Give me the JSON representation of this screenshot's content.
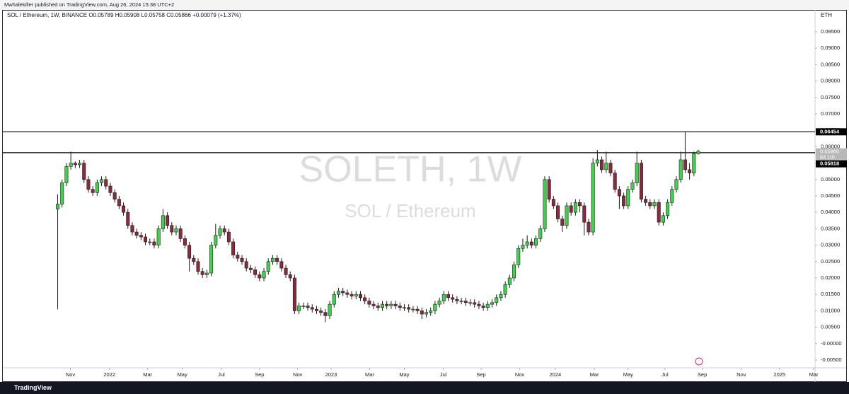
{
  "header": "Mwhalekiller published on TradingView.com, Aug 26, 2024 15:38 UTC+2",
  "footer": "TradingView",
  "chart_data": {
    "type": "candlestick",
    "symbol": "SOL / Ethereum, 1W, BINANCE",
    "legend_values": [
      "O0.05789",
      "H0.05908",
      "L0.05758",
      "C0.05866",
      "+0.00079 (+1.37%)"
    ],
    "watermark": "SOLETH, 1W",
    "watermark_subtitle": "SOL / Ethereum",
    "y_unit": "ETH",
    "countdown": "6d 11h",
    "colors": {
      "up": "#3fd24b",
      "down": "#8a2a3b",
      "wick": "#1c1c1c"
    },
    "hlines": [
      0.06454,
      0.05818
    ],
    "xlim": [
      -12.5,
      172.6
    ],
    "ylim": [
      -0.00737,
      0.10168
    ],
    "xticks": [
      {
        "value": 2.9,
        "label": "Nov"
      },
      {
        "value": 11.8,
        "label": "2022"
      },
      {
        "value": 20.5,
        "label": "Mar"
      },
      {
        "value": 28.4,
        "label": "May"
      },
      {
        "value": 37.3,
        "label": "Jul"
      },
      {
        "value": 46.0,
        "label": "Sep"
      },
      {
        "value": 54.7,
        "label": "Nov"
      },
      {
        "value": 62.3,
        "label": "2023"
      },
      {
        "value": 71.1,
        "label": "Mar"
      },
      {
        "value": 79.0,
        "label": "May"
      },
      {
        "value": 87.9,
        "label": "Jul"
      },
      {
        "value": 96.5,
        "label": "Sep"
      },
      {
        "value": 105.3,
        "label": "Nov"
      },
      {
        "value": 113.4,
        "label": "2024"
      },
      {
        "value": 122.3,
        "label": "Mar"
      },
      {
        "value": 130.0,
        "label": "May"
      },
      {
        "value": 138.4,
        "label": "Jul"
      },
      {
        "value": 146.9,
        "label": "Sep"
      },
      {
        "value": 155.8,
        "label": "Nov"
      },
      {
        "value": 164.5,
        "label": "2025"
      },
      {
        "value": 172.3,
        "label": "Mar"
      }
    ],
    "yticks": [
      {
        "value": 0.095,
        "label": "0.09500"
      },
      {
        "value": 0.09,
        "label": "0.09000"
      },
      {
        "value": 0.085,
        "label": "0.08500"
      },
      {
        "value": 0.08,
        "label": "0.08000"
      },
      {
        "value": 0.075,
        "label": "0.07500"
      },
      {
        "value": 0.07,
        "label": "0.07000"
      },
      {
        "value": 0.065,
        "label": "0.06500"
      },
      {
        "value": 0.06,
        "label": "0.06000"
      },
      {
        "value": 0.055,
        "label": "0.05500"
      },
      {
        "value": 0.05,
        "label": "0.05000"
      },
      {
        "value": 0.045,
        "label": "0.04500"
      },
      {
        "value": 0.04,
        "label": "0.04000"
      },
      {
        "value": 0.035,
        "label": "0.03500"
      },
      {
        "value": 0.03,
        "label": "0.03000"
      },
      {
        "value": 0.025,
        "label": "0.02500"
      },
      {
        "value": 0.02,
        "label": "0.02000"
      },
      {
        "value": 0.015,
        "label": "0.01500"
      },
      {
        "value": 0.01,
        "label": "0.01000"
      },
      {
        "value": 0.005,
        "label": "0.00500"
      },
      {
        "value": 0,
        "label": "-0.00000"
      },
      {
        "value": -0.005,
        "label": "-0.00500"
      }
    ],
    "x": [
      0,
      1,
      2,
      3,
      4,
      5,
      6,
      7,
      8,
      9,
      10,
      11,
      12,
      13,
      14,
      15,
      16,
      17,
      18,
      19,
      20,
      21,
      22,
      23,
      24,
      25,
      26,
      27,
      28,
      29,
      30,
      31,
      32,
      33,
      34,
      35,
      36,
      37,
      38,
      39,
      40,
      41,
      42,
      43,
      44,
      45,
      46,
      47,
      48,
      49,
      50,
      51,
      52,
      53,
      54,
      55,
      56,
      57,
      58,
      59,
      60,
      61,
      62,
      63,
      64,
      65,
      66,
      67,
      68,
      69,
      70,
      71,
      72,
      73,
      74,
      75,
      76,
      77,
      78,
      79,
      80,
      81,
      82,
      83,
      84,
      85,
      86,
      87,
      88,
      89,
      90,
      91,
      92,
      93,
      94,
      95,
      96,
      97,
      98,
      99,
      100,
      101,
      102,
      103,
      104,
      105,
      106,
      107,
      108,
      109,
      110,
      111,
      112,
      113,
      114,
      115,
      116,
      117,
      118,
      119,
      120,
      121,
      122,
      123,
      124,
      125,
      126,
      127,
      128,
      129,
      130,
      131,
      132,
      133,
      134,
      135,
      136,
      137,
      138,
      139,
      140,
      141,
      142,
      143,
      144,
      145,
      146
    ],
    "ohlc": [
      [
        0.041,
        0.0455,
        0.0105,
        0.0425
      ],
      [
        0.0425,
        0.05,
        0.0415,
        0.049
      ],
      [
        0.049,
        0.055,
        0.048,
        0.054
      ],
      [
        0.054,
        0.0585,
        0.053,
        0.055
      ],
      [
        0.055,
        0.0555,
        0.0535,
        0.0545
      ],
      [
        0.0545,
        0.056,
        0.0535,
        0.055
      ],
      [
        0.055,
        0.056,
        0.049,
        0.05
      ],
      [
        0.05,
        0.051,
        0.046,
        0.047
      ],
      [
        0.047,
        0.048,
        0.045,
        0.046
      ],
      [
        0.046,
        0.05,
        0.045,
        0.049
      ],
      [
        0.049,
        0.051,
        0.048,
        0.05
      ],
      [
        0.05,
        0.051,
        0.047,
        0.048
      ],
      [
        0.048,
        0.049,
        0.045,
        0.046
      ],
      [
        0.046,
        0.047,
        0.043,
        0.044
      ],
      [
        0.044,
        0.045,
        0.041,
        0.042
      ],
      [
        0.042,
        0.043,
        0.039,
        0.04
      ],
      [
        0.04,
        0.041,
        0.035,
        0.036
      ],
      [
        0.036,
        0.037,
        0.033,
        0.034
      ],
      [
        0.034,
        0.035,
        0.032,
        0.033
      ],
      [
        0.033,
        0.034,
        0.0315,
        0.0325
      ],
      [
        0.0325,
        0.0335,
        0.03,
        0.031
      ],
      [
        0.031,
        0.032,
        0.03,
        0.031
      ],
      [
        0.031,
        0.032,
        0.029,
        0.03
      ],
      [
        0.03,
        0.036,
        0.029,
        0.035
      ],
      [
        0.035,
        0.041,
        0.034,
        0.039
      ],
      [
        0.039,
        0.04,
        0.035,
        0.036
      ],
      [
        0.036,
        0.037,
        0.033,
        0.034
      ],
      [
        0.034,
        0.036,
        0.033,
        0.035
      ],
      [
        0.035,
        0.036,
        0.031,
        0.032
      ],
      [
        0.032,
        0.033,
        0.029,
        0.03
      ],
      [
        0.03,
        0.031,
        0.022,
        0.026
      ],
      [
        0.026,
        0.027,
        0.024,
        0.025
      ],
      [
        0.025,
        0.026,
        0.021,
        0.022
      ],
      [
        0.022,
        0.023,
        0.02,
        0.021
      ],
      [
        0.021,
        0.0225,
        0.02,
        0.0215
      ],
      [
        0.0215,
        0.031,
        0.0205,
        0.03
      ],
      [
        0.03,
        0.0365,
        0.029,
        0.033
      ],
      [
        0.033,
        0.036,
        0.032,
        0.035
      ],
      [
        0.035,
        0.036,
        0.033,
        0.034
      ],
      [
        0.034,
        0.035,
        0.03,
        0.031
      ],
      [
        0.031,
        0.032,
        0.026,
        0.027
      ],
      [
        0.027,
        0.028,
        0.025,
        0.026
      ],
      [
        0.026,
        0.027,
        0.024,
        0.025
      ],
      [
        0.025,
        0.026,
        0.022,
        0.023
      ],
      [
        0.023,
        0.024,
        0.0215,
        0.0225
      ],
      [
        0.0225,
        0.0235,
        0.02,
        0.021
      ],
      [
        0.021,
        0.022,
        0.019,
        0.02
      ],
      [
        0.02,
        0.023,
        0.019,
        0.022
      ],
      [
        0.022,
        0.026,
        0.021,
        0.025
      ],
      [
        0.025,
        0.027,
        0.024,
        0.026
      ],
      [
        0.026,
        0.027,
        0.024,
        0.025
      ],
      [
        0.025,
        0.026,
        0.022,
        0.023
      ],
      [
        0.023,
        0.024,
        0.02,
        0.021
      ],
      [
        0.021,
        0.022,
        0.019,
        0.02
      ],
      [
        0.02,
        0.021,
        0.009,
        0.01
      ],
      [
        0.01,
        0.0125,
        0.009,
        0.0115
      ],
      [
        0.0115,
        0.0125,
        0.0105,
        0.0115
      ],
      [
        0.0115,
        0.0125,
        0.01,
        0.011
      ],
      [
        0.011,
        0.012,
        0.0095,
        0.0105
      ],
      [
        0.0105,
        0.0115,
        0.009,
        0.01
      ],
      [
        0.01,
        0.011,
        0.0085,
        0.0095
      ],
      [
        0.0095,
        0.0105,
        0.0065,
        0.0085
      ],
      [
        0.0085,
        0.013,
        0.0075,
        0.012
      ],
      [
        0.012,
        0.016,
        0.011,
        0.015
      ],
      [
        0.015,
        0.017,
        0.014,
        0.016
      ],
      [
        0.016,
        0.017,
        0.0145,
        0.0155
      ],
      [
        0.0155,
        0.0165,
        0.014,
        0.015
      ],
      [
        0.015,
        0.016,
        0.0135,
        0.0145
      ],
      [
        0.0145,
        0.016,
        0.0135,
        0.015
      ],
      [
        0.015,
        0.016,
        0.013,
        0.014
      ],
      [
        0.014,
        0.015,
        0.012,
        0.013
      ],
      [
        0.013,
        0.014,
        0.011,
        0.012
      ],
      [
        0.012,
        0.013,
        0.0105,
        0.0115
      ],
      [
        0.0115,
        0.0125,
        0.01,
        0.011
      ],
      [
        0.011,
        0.013,
        0.01,
        0.012
      ],
      [
        0.012,
        0.013,
        0.0105,
        0.0115
      ],
      [
        0.0115,
        0.013,
        0.0105,
        0.012
      ],
      [
        0.012,
        0.013,
        0.0105,
        0.0115
      ],
      [
        0.0115,
        0.0125,
        0.01,
        0.011
      ],
      [
        0.011,
        0.012,
        0.01,
        0.011
      ],
      [
        0.011,
        0.012,
        0.0095,
        0.0105
      ],
      [
        0.0105,
        0.0115,
        0.0095,
        0.0105
      ],
      [
        0.0105,
        0.0115,
        0.009,
        0.01
      ],
      [
        0.01,
        0.011,
        0.0075,
        0.009
      ],
      [
        0.009,
        0.0105,
        0.008,
        0.0095
      ],
      [
        0.0095,
        0.011,
        0.0085,
        0.01
      ],
      [
        0.01,
        0.013,
        0.009,
        0.012
      ],
      [
        0.012,
        0.014,
        0.011,
        0.013
      ],
      [
        0.013,
        0.016,
        0.012,
        0.015
      ],
      [
        0.015,
        0.016,
        0.013,
        0.014
      ],
      [
        0.014,
        0.015,
        0.0125,
        0.0135
      ],
      [
        0.0135,
        0.0145,
        0.012,
        0.013
      ],
      [
        0.013,
        0.014,
        0.012,
        0.013
      ],
      [
        0.013,
        0.014,
        0.0115,
        0.0125
      ],
      [
        0.0125,
        0.0135,
        0.0115,
        0.0125
      ],
      [
        0.0125,
        0.0135,
        0.011,
        0.012
      ],
      [
        0.012,
        0.013,
        0.0105,
        0.0115
      ],
      [
        0.0115,
        0.0125,
        0.01,
        0.011
      ],
      [
        0.011,
        0.013,
        0.01,
        0.012
      ],
      [
        0.012,
        0.0135,
        0.011,
        0.0125
      ],
      [
        0.0125,
        0.015,
        0.0115,
        0.014
      ],
      [
        0.014,
        0.016,
        0.013,
        0.015
      ],
      [
        0.015,
        0.019,
        0.014,
        0.018
      ],
      [
        0.018,
        0.021,
        0.017,
        0.02
      ],
      [
        0.02,
        0.025,
        0.019,
        0.024
      ],
      [
        0.024,
        0.03,
        0.023,
        0.029
      ],
      [
        0.029,
        0.032,
        0.028,
        0.03
      ],
      [
        0.03,
        0.033,
        0.029,
        0.031
      ],
      [
        0.031,
        0.032,
        0.029,
        0.03
      ],
      [
        0.03,
        0.033,
        0.029,
        0.032
      ],
      [
        0.032,
        0.036,
        0.031,
        0.035
      ],
      [
        0.035,
        0.051,
        0.034,
        0.05
      ],
      [
        0.05,
        0.051,
        0.043,
        0.044
      ],
      [
        0.044,
        0.045,
        0.041,
        0.042
      ],
      [
        0.042,
        0.043,
        0.037,
        0.038
      ],
      [
        0.038,
        0.039,
        0.034,
        0.036
      ],
      [
        0.036,
        0.043,
        0.035,
        0.042
      ],
      [
        0.042,
        0.043,
        0.039,
        0.04
      ],
      [
        0.04,
        0.044,
        0.039,
        0.043
      ],
      [
        0.043,
        0.044,
        0.04,
        0.042
      ],
      [
        0.042,
        0.043,
        0.033,
        0.037
      ],
      [
        0.037,
        0.038,
        0.033,
        0.034
      ],
      [
        0.034,
        0.0565,
        0.033,
        0.055
      ],
      [
        0.055,
        0.059,
        0.054,
        0.056
      ],
      [
        0.056,
        0.057,
        0.052,
        0.053
      ],
      [
        0.053,
        0.0585,
        0.052,
        0.055
      ],
      [
        0.055,
        0.056,
        0.051,
        0.052
      ],
      [
        0.052,
        0.053,
        0.046,
        0.047
      ],
      [
        0.047,
        0.048,
        0.041,
        0.045
      ],
      [
        0.045,
        0.046,
        0.041,
        0.042
      ],
      [
        0.042,
        0.048,
        0.041,
        0.047
      ],
      [
        0.047,
        0.05,
        0.046,
        0.049
      ],
      [
        0.049,
        0.0585,
        0.048,
        0.055
      ],
      [
        0.055,
        0.056,
        0.043,
        0.044
      ],
      [
        0.044,
        0.045,
        0.042,
        0.043
      ],
      [
        0.043,
        0.044,
        0.041,
        0.042
      ],
      [
        0.042,
        0.044,
        0.041,
        0.043
      ],
      [
        0.043,
        0.044,
        0.036,
        0.037
      ],
      [
        0.037,
        0.04,
        0.036,
        0.039
      ],
      [
        0.039,
        0.044,
        0.038,
        0.043
      ],
      [
        0.043,
        0.048,
        0.042,
        0.047
      ],
      [
        0.047,
        0.051,
        0.046,
        0.05
      ],
      [
        0.05,
        0.0585,
        0.049,
        0.056
      ],
      [
        0.056,
        0.06454,
        0.052,
        0.053
      ],
      [
        0.053,
        0.055,
        0.05,
        0.052
      ],
      [
        0.052,
        0.0585,
        0.051,
        0.05789
      ],
      [
        0.05789,
        0.05908,
        0.05758,
        0.05866
      ]
    ]
  }
}
